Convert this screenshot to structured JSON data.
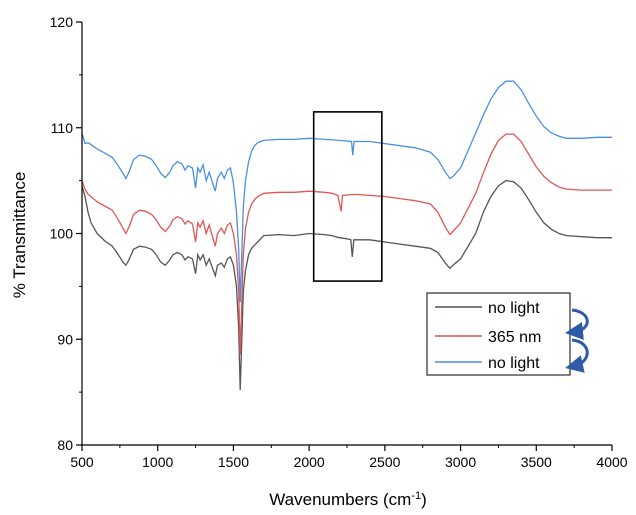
{
  "chart_data": {
    "type": "line",
    "xlabel": "Wavenumbers (cm",
    "xlabel_sup": "-1",
    "xlabel_close": ")",
    "ylabel": "% Transmittance",
    "xlim": [
      500,
      4000
    ],
    "ylim": [
      80,
      120
    ],
    "x_ticks": [
      500,
      1000,
      1500,
      2000,
      2500,
      3000,
      3500,
      4000
    ],
    "y_ticks": [
      80,
      90,
      100,
      110,
      120
    ],
    "grid": false,
    "legend_position": "bottom-right",
    "highlight_box": {
      "x": [
        2030,
        2480
      ],
      "y": [
        95.5,
        111.5
      ]
    },
    "series": [
      {
        "name": "no light",
        "color": "#555555",
        "points": [
          [
            500,
            104.5
          ],
          [
            520,
            103.5
          ],
          [
            540,
            102.0
          ],
          [
            560,
            101.0
          ],
          [
            600,
            100.0
          ],
          [
            650,
            99.3
          ],
          [
            700,
            98.8
          ],
          [
            740,
            98.0
          ],
          [
            770,
            97.3
          ],
          [
            790,
            97.0
          ],
          [
            810,
            97.5
          ],
          [
            840,
            98.5
          ],
          [
            880,
            98.8
          ],
          [
            920,
            98.7
          ],
          [
            960,
            98.5
          ],
          [
            990,
            98.0
          ],
          [
            1020,
            97.3
          ],
          [
            1050,
            97.0
          ],
          [
            1080,
            97.5
          ],
          [
            1100,
            98.0
          ],
          [
            1130,
            98.2
          ],
          [
            1160,
            98.0
          ],
          [
            1180,
            97.5
          ],
          [
            1200,
            97.8
          ],
          [
            1230,
            97.6
          ],
          [
            1250,
            96.2
          ],
          [
            1265,
            98.0
          ],
          [
            1280,
            97.5
          ],
          [
            1300,
            98.0
          ],
          [
            1320,
            97.0
          ],
          [
            1340,
            97.6
          ],
          [
            1360,
            96.8
          ],
          [
            1380,
            96.0
          ],
          [
            1395,
            97.0
          ],
          [
            1420,
            97.2
          ],
          [
            1440,
            96.8
          ],
          [
            1460,
            97.6
          ],
          [
            1480,
            97.8
          ],
          [
            1500,
            97.0
          ],
          [
            1520,
            95.0
          ],
          [
            1535,
            91.0
          ],
          [
            1545,
            85.2
          ],
          [
            1555,
            90.0
          ],
          [
            1565,
            94.5
          ],
          [
            1580,
            96.5
          ],
          [
            1600,
            98.0
          ],
          [
            1620,
            98.6
          ],
          [
            1640,
            98.9
          ],
          [
            1660,
            99.2
          ],
          [
            1700,
            99.8
          ],
          [
            1800,
            99.9
          ],
          [
            1900,
            99.8
          ],
          [
            2000,
            100.0
          ],
          [
            2100,
            99.9
          ],
          [
            2150,
            99.8
          ],
          [
            2200,
            99.6
          ],
          [
            2250,
            99.5
          ],
          [
            2275,
            99.4
          ],
          [
            2285,
            97.8
          ],
          [
            2295,
            99.4
          ],
          [
            2400,
            99.4
          ],
          [
            2500,
            99.2
          ],
          [
            2600,
            99.0
          ],
          [
            2700,
            98.8
          ],
          [
            2800,
            98.6
          ],
          [
            2850,
            98.2
          ],
          [
            2900,
            97.2
          ],
          [
            2930,
            96.7
          ],
          [
            2950,
            97.0
          ],
          [
            3000,
            97.6
          ],
          [
            3100,
            100.0
          ],
          [
            3150,
            102.0
          ],
          [
            3200,
            103.5
          ],
          [
            3250,
            104.5
          ],
          [
            3300,
            105.0
          ],
          [
            3350,
            104.9
          ],
          [
            3400,
            104.3
          ],
          [
            3450,
            103.2
          ],
          [
            3500,
            102.0
          ],
          [
            3550,
            101.0
          ],
          [
            3600,
            100.4
          ],
          [
            3650,
            100.0
          ],
          [
            3700,
            99.8
          ],
          [
            3800,
            99.7
          ],
          [
            3900,
            99.6
          ],
          [
            4000,
            99.6
          ]
        ]
      },
      {
        "name": "365 nm",
        "color": "#e25656",
        "points": [
          [
            500,
            105.0
          ],
          [
            520,
            104.2
          ],
          [
            540,
            103.7
          ],
          [
            560,
            103.5
          ],
          [
            600,
            103.0
          ],
          [
            650,
            102.6
          ],
          [
            700,
            102.2
          ],
          [
            740,
            101.3
          ],
          [
            770,
            100.5
          ],
          [
            790,
            100.0
          ],
          [
            810,
            100.6
          ],
          [
            840,
            101.8
          ],
          [
            880,
            102.2
          ],
          [
            920,
            102.1
          ],
          [
            960,
            101.8
          ],
          [
            990,
            101.3
          ],
          [
            1020,
            100.6
          ],
          [
            1050,
            100.2
          ],
          [
            1080,
            100.7
          ],
          [
            1100,
            101.3
          ],
          [
            1130,
            101.6
          ],
          [
            1160,
            101.4
          ],
          [
            1180,
            100.9
          ],
          [
            1200,
            101.2
          ],
          [
            1230,
            100.9
          ],
          [
            1250,
            99.2
          ],
          [
            1265,
            101.0
          ],
          [
            1280,
            100.6
          ],
          [
            1300,
            101.2
          ],
          [
            1320,
            100.0
          ],
          [
            1340,
            100.8
          ],
          [
            1360,
            99.8
          ],
          [
            1380,
            98.8
          ],
          [
            1395,
            100.0
          ],
          [
            1420,
            100.5
          ],
          [
            1440,
            100.0
          ],
          [
            1460,
            100.8
          ],
          [
            1480,
            101.0
          ],
          [
            1500,
            100.0
          ],
          [
            1520,
            98.0
          ],
          [
            1535,
            94.5
          ],
          [
            1545,
            88.5
          ],
          [
            1555,
            93.5
          ],
          [
            1565,
            98.0
          ],
          [
            1580,
            100.5
          ],
          [
            1600,
            102.0
          ],
          [
            1620,
            102.8
          ],
          [
            1640,
            103.2
          ],
          [
            1660,
            103.5
          ],
          [
            1700,
            103.8
          ],
          [
            1800,
            103.9
          ],
          [
            1900,
            103.9
          ],
          [
            2000,
            104.0
          ],
          [
            2100,
            103.9
          ],
          [
            2150,
            103.8
          ],
          [
            2190,
            103.6
          ],
          [
            2205,
            102.5
          ],
          [
            2212,
            102.1
          ],
          [
            2220,
            103.6
          ],
          [
            2300,
            103.7
          ],
          [
            2400,
            103.6
          ],
          [
            2500,
            103.5
          ],
          [
            2600,
            103.3
          ],
          [
            2700,
            103.1
          ],
          [
            2800,
            102.8
          ],
          [
            2850,
            102.0
          ],
          [
            2900,
            100.6
          ],
          [
            2930,
            99.9
          ],
          [
            2950,
            100.2
          ],
          [
            3000,
            101.0
          ],
          [
            3100,
            103.8
          ],
          [
            3150,
            105.7
          ],
          [
            3200,
            107.5
          ],
          [
            3250,
            108.8
          ],
          [
            3300,
            109.4
          ],
          [
            3350,
            109.4
          ],
          [
            3400,
            108.7
          ],
          [
            3450,
            107.5
          ],
          [
            3500,
            106.3
          ],
          [
            3550,
            105.4
          ],
          [
            3600,
            104.8
          ],
          [
            3650,
            104.4
          ],
          [
            3700,
            104.2
          ],
          [
            3800,
            104.1
          ],
          [
            3900,
            104.1
          ],
          [
            4000,
            104.1
          ]
        ]
      },
      {
        "name": "no light",
        "color": "#4a90e2",
        "points": [
          [
            500,
            109.5
          ],
          [
            520,
            108.5
          ],
          [
            540,
            108.6
          ],
          [
            560,
            108.4
          ],
          [
            600,
            108.0
          ],
          [
            650,
            107.6
          ],
          [
            700,
            107.2
          ],
          [
            740,
            106.4
          ],
          [
            770,
            105.7
          ],
          [
            790,
            105.2
          ],
          [
            810,
            105.8
          ],
          [
            840,
            107.0
          ],
          [
            880,
            107.4
          ],
          [
            920,
            107.3
          ],
          [
            960,
            107.0
          ],
          [
            990,
            106.4
          ],
          [
            1020,
            105.7
          ],
          [
            1050,
            105.3
          ],
          [
            1080,
            105.8
          ],
          [
            1100,
            106.4
          ],
          [
            1130,
            106.8
          ],
          [
            1160,
            106.6
          ],
          [
            1180,
            106.0
          ],
          [
            1200,
            106.4
          ],
          [
            1230,
            106.2
          ],
          [
            1250,
            104.3
          ],
          [
            1265,
            106.2
          ],
          [
            1280,
            105.8
          ],
          [
            1300,
            106.5
          ],
          [
            1320,
            105.0
          ],
          [
            1340,
            105.8
          ],
          [
            1360,
            104.9
          ],
          [
            1380,
            104.0
          ],
          [
            1395,
            105.2
          ],
          [
            1420,
            105.8
          ],
          [
            1440,
            105.2
          ],
          [
            1460,
            106.0
          ],
          [
            1480,
            106.2
          ],
          [
            1500,
            104.8
          ],
          [
            1520,
            102.0
          ],
          [
            1535,
            98.5
          ],
          [
            1545,
            93.5
          ],
          [
            1555,
            98.0
          ],
          [
            1565,
            102.5
          ],
          [
            1580,
            105.0
          ],
          [
            1600,
            106.8
          ],
          [
            1620,
            107.8
          ],
          [
            1640,
            108.3
          ],
          [
            1660,
            108.6
          ],
          [
            1700,
            108.8
          ],
          [
            1800,
            108.9
          ],
          [
            1900,
            108.9
          ],
          [
            2000,
            109.0
          ],
          [
            2100,
            108.9
          ],
          [
            2200,
            108.8
          ],
          [
            2280,
            108.7
          ],
          [
            2288,
            107.4
          ],
          [
            2296,
            108.7
          ],
          [
            2400,
            108.7
          ],
          [
            2500,
            108.5
          ],
          [
            2600,
            108.3
          ],
          [
            2700,
            108.1
          ],
          [
            2800,
            107.7
          ],
          [
            2850,
            107.0
          ],
          [
            2900,
            105.8
          ],
          [
            2930,
            105.2
          ],
          [
            2950,
            105.4
          ],
          [
            3000,
            106.2
          ],
          [
            3100,
            109.5
          ],
          [
            3150,
            111.2
          ],
          [
            3200,
            112.7
          ],
          [
            3250,
            113.8
          ],
          [
            3300,
            114.4
          ],
          [
            3350,
            114.4
          ],
          [
            3400,
            113.6
          ],
          [
            3450,
            112.3
          ],
          [
            3500,
            111.1
          ],
          [
            3550,
            110.1
          ],
          [
            3600,
            109.5
          ],
          [
            3650,
            109.2
          ],
          [
            3700,
            109.0
          ],
          [
            3800,
            109.0
          ],
          [
            3900,
            109.1
          ],
          [
            4000,
            109.1
          ]
        ]
      }
    ]
  }
}
